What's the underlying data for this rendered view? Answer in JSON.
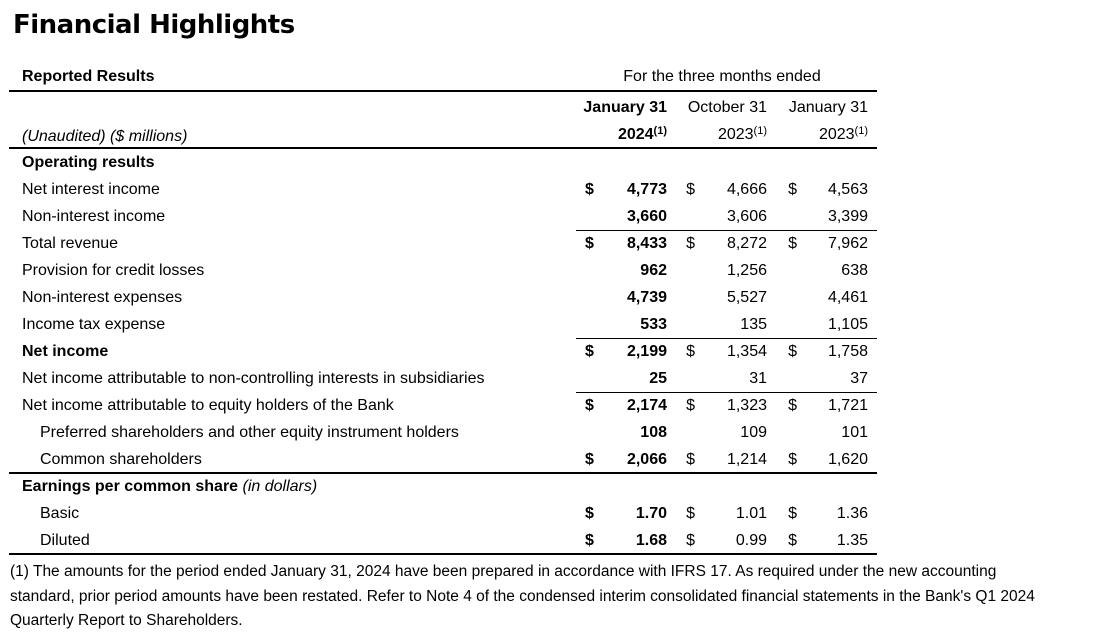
{
  "title": "Financial Highlights",
  "table": {
    "currency_symbol": "$",
    "header": {
      "reported_results": "Reported Results",
      "period_label": "For the three months ended",
      "unaudited": "(Unaudited) ($ millions)",
      "columns": [
        {
          "month": "January 31",
          "year": "2024",
          "note": "(1)"
        },
        {
          "month": "October 31",
          "year": "2023",
          "note": "(1)"
        },
        {
          "month": "January 31",
          "year": "2023",
          "note": "(1)"
        }
      ]
    },
    "rows": [
      {
        "label": "Operating results"
      },
      {
        "label": "Net interest income",
        "values": [
          "4,773",
          "4,666",
          "4,563"
        ]
      },
      {
        "label": "Non-interest income",
        "values": [
          "3,660",
          "3,606",
          "3,399"
        ]
      },
      {
        "label": "Total revenue",
        "values": [
          "8,433",
          "8,272",
          "7,962"
        ]
      },
      {
        "label": "Provision for credit losses",
        "values": [
          "962",
          "1,256",
          "638"
        ]
      },
      {
        "label": "Non-interest expenses",
        "values": [
          "4,739",
          "5,527",
          "4,461"
        ]
      },
      {
        "label": "Income tax expense",
        "values": [
          "533",
          "135",
          "1,105"
        ]
      },
      {
        "label": "Net income",
        "values": [
          "2,199",
          "1,354",
          "1,758"
        ]
      },
      {
        "label": "Net income attributable to non-controlling interests in subsidiaries",
        "values": [
          "25",
          "31",
          "37"
        ]
      },
      {
        "label": "Net income attributable to equity holders of the Bank",
        "values": [
          "2,174",
          "1,323",
          "1,721"
        ]
      },
      {
        "label": "Preferred shareholders and other equity instrument holders",
        "values": [
          "108",
          "109",
          "101"
        ]
      },
      {
        "label": "Common shareholders",
        "values": [
          "2,066",
          "1,214",
          "1,620"
        ]
      },
      {
        "label": "Earnings per common share",
        "note": "(in dollars)"
      },
      {
        "label": "Basic",
        "values": [
          "1.70",
          "1.01",
          "1.36"
        ]
      },
      {
        "label": "Diluted",
        "values": [
          "1.68",
          "0.99",
          "1.35"
        ]
      }
    ]
  },
  "footnote": {
    "lines": [
      "(1) The amounts for the period ended January 31, 2024 have been prepared in accordance with IFRS 17. As required under the new accounting",
      "standard, prior period amounts have been restated. Refer to Note 4 of the condensed interim consolidated financial statements in the Bank's Q1 2024",
      "Quarterly Report to Shareholders."
    ]
  }
}
